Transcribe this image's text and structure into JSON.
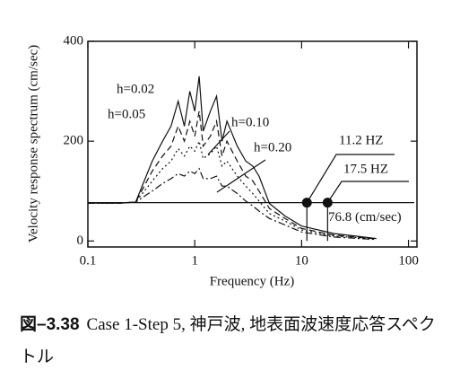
{
  "chart_data": {
    "type": "line",
    "x_label": "Frequency (Hz)",
    "y_label": "Velocity response spectrum (cm/sec)",
    "x": [
      0.1,
      0.2,
      0.28,
      0.4,
      0.5,
      0.6,
      0.7,
      0.8,
      0.9,
      1.0,
      1.1,
      1.2,
      1.4,
      1.6,
      1.8,
      2,
      2.5,
      3,
      3.5,
      4,
      5,
      7,
      10,
      20,
      50
    ],
    "series": [
      {
        "name": "h=0.02",
        "color": "#111111",
        "dash": "solid",
        "values": [
          76,
          76,
          78,
          160,
          200,
          230,
          280,
          230,
          300,
          260,
          330,
          220,
          260,
          290,
          200,
          240,
          190,
          160,
          150,
          130,
          75,
          50,
          30,
          15,
          5
        ]
      },
      {
        "name": "h=0.05",
        "color": "#111111",
        "dash": "dashed",
        "values": [
          76,
          76,
          78,
          140,
          170,
          190,
          230,
          200,
          240,
          210,
          260,
          190,
          210,
          240,
          170,
          200,
          160,
          130,
          120,
          100,
          65,
          45,
          25,
          12,
          4
        ]
      },
      {
        "name": "h=0.10",
        "color": "#111111",
        "dash": "dotted",
        "values": [
          76,
          76,
          78,
          120,
          145,
          160,
          185,
          170,
          190,
          180,
          200,
          165,
          175,
          190,
          150,
          160,
          130,
          110,
          95,
          80,
          55,
          40,
          22,
          10,
          4
        ]
      },
      {
        "name": "h=0.20",
        "color": "#111111",
        "dash": "dashdot",
        "values": [
          76,
          76,
          78,
          100,
          115,
          125,
          135,
          130,
          140,
          135,
          145,
          125,
          125,
          130,
          110,
          110,
          95,
          80,
          70,
          60,
          45,
          32,
          18,
          8,
          3
        ]
      }
    ],
    "xlim": [
      0.1,
      120
    ],
    "log_x": true,
    "xticks": [
      0.1,
      1,
      10,
      100
    ],
    "ylim": [
      -12,
      400
    ],
    "yticks": [
      0,
      200,
      400
    ],
    "reference_line": {
      "value": 76.8,
      "label": "76.8 (cm/sec)"
    },
    "points": [
      {
        "x": 11.2,
        "label": "11.2 HZ"
      },
      {
        "x": 17.5,
        "label": "17.5 HZ"
      }
    ]
  },
  "caption": {
    "label": "図–3.38",
    "text": "Case 1-Step 5, 神戸波, 地表面波速度応答スペクトル"
  }
}
